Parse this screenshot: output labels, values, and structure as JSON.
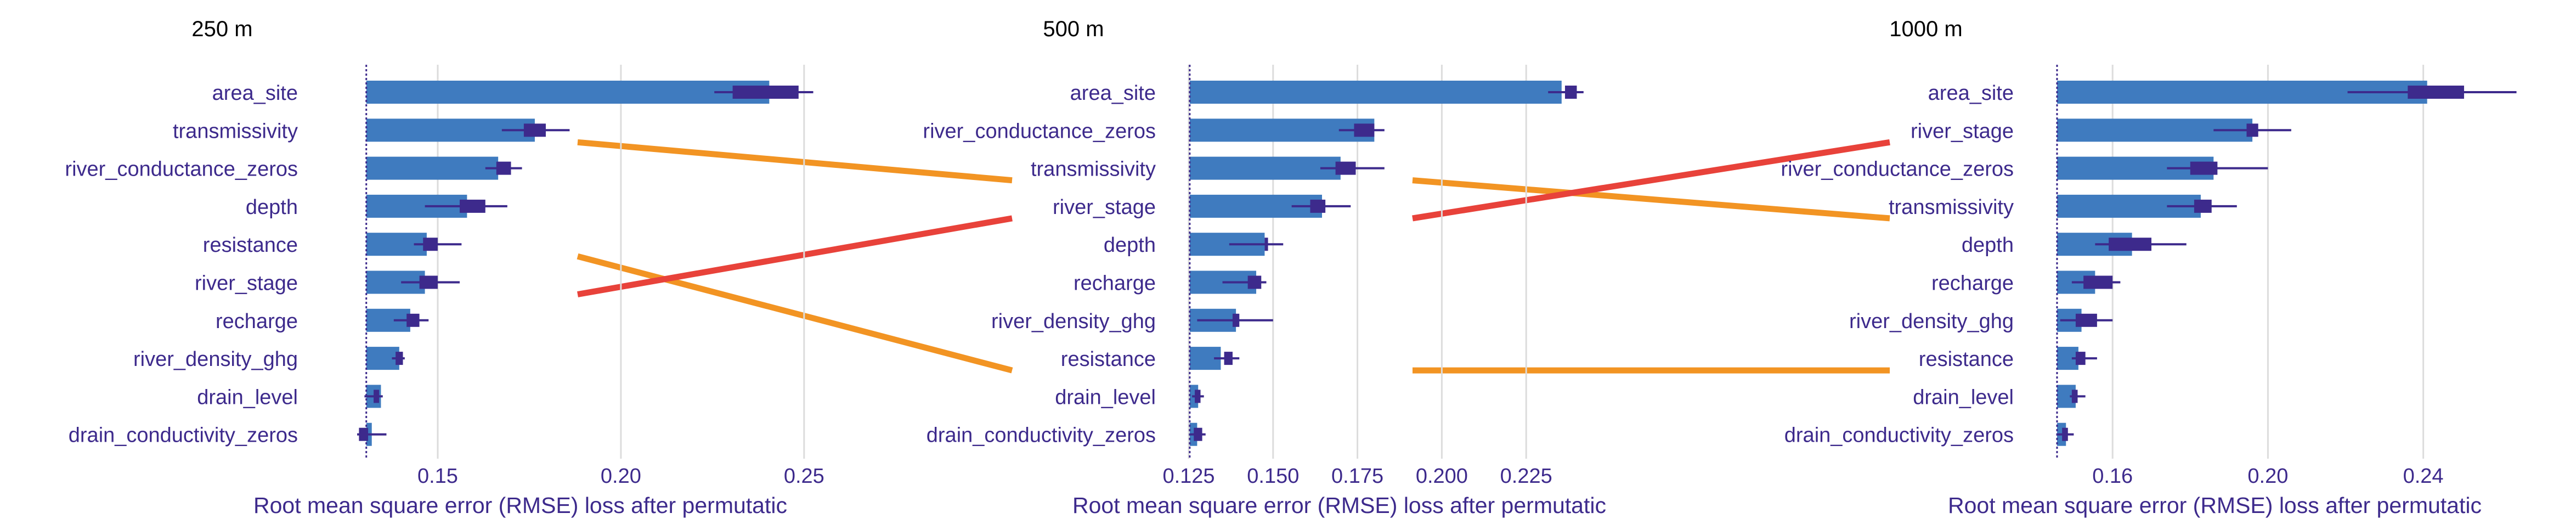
{
  "colors": {
    "bar": "#3f7bbf",
    "whisker": "#3d2a8c",
    "grid": "#dcdcdc",
    "baseline": "#3d2a8c",
    "label": "#3d2a8c",
    "title": "#000000",
    "orange": "#f29423",
    "red": "#e8423a"
  },
  "chart_data": [
    {
      "type": "bar",
      "title": "250 m",
      "xlabel": "Root mean square error (RMSE) loss after permutatic",
      "xlim": [
        0.125,
        0.265
      ],
      "baseline": 0.1305,
      "xticks": [
        0.15,
        0.2,
        0.25
      ],
      "xtick_labels": [
        "0.15",
        "0.20",
        "0.25"
      ],
      "categories": [
        "area_site",
        "transmissivity",
        "river_conductance_zeros",
        "depth",
        "resistance",
        "river_stage",
        "recharge",
        "river_density_ghg",
        "drain_level",
        "drain_conductivity_zeros"
      ],
      "values": [
        0.2405,
        0.1765,
        0.1665,
        0.158,
        0.147,
        0.1465,
        0.1425,
        0.1395,
        0.1345,
        0.132
      ],
      "box_low": [
        0.2305,
        0.1735,
        0.166,
        0.156,
        0.146,
        0.145,
        0.1415,
        0.1385,
        0.1325,
        0.1285
      ],
      "box_high": [
        0.2485,
        0.1795,
        0.17,
        0.163,
        0.15,
        0.15,
        0.145,
        0.1405,
        0.134,
        0.131
      ],
      "whisker_low": [
        0.2255,
        0.1675,
        0.163,
        0.1465,
        0.1435,
        0.14,
        0.138,
        0.1375,
        0.13,
        0.128
      ],
      "whisker_high": [
        0.2525,
        0.186,
        0.173,
        0.169,
        0.1565,
        0.156,
        0.1475,
        0.141,
        0.135,
        0.136
      ]
    },
    {
      "type": "bar",
      "title": "500 m",
      "xlabel": "Root mean square error (RMSE) loss after permutatic",
      "xlim": [
        0.125,
        0.25
      ],
      "baseline": 0.1253,
      "xticks": [
        0.125,
        0.15,
        0.175,
        0.2,
        0.225
      ],
      "xtick_labels": [
        "0.125",
        "0.150",
        "0.175",
        "0.200",
        "0.225"
      ],
      "categories": [
        "area_site",
        "river_conductance_zeros",
        "transmissivity",
        "river_stage",
        "depth",
        "recharge",
        "river_density_ghg",
        "resistance",
        "drain_level",
        "drain_conductivity_zeros"
      ],
      "values": [
        0.2355,
        0.18,
        0.17,
        0.1645,
        0.1475,
        0.145,
        0.139,
        0.1345,
        0.1278,
        0.1275
      ],
      "box_low": [
        0.2365,
        0.174,
        0.1685,
        0.161,
        0.1475,
        0.1425,
        0.138,
        0.1355,
        0.1268,
        0.1265
      ],
      "box_high": [
        0.24,
        0.18,
        0.1745,
        0.1655,
        0.1485,
        0.1465,
        0.14,
        0.138,
        0.1285,
        0.129
      ],
      "whisker_low": [
        0.2315,
        0.1695,
        0.164,
        0.1555,
        0.137,
        0.135,
        0.1275,
        0.1325,
        0.126,
        0.1255
      ],
      "whisker_high": [
        0.242,
        0.183,
        0.183,
        0.173,
        0.153,
        0.148,
        0.15,
        0.14,
        0.1295,
        0.13
      ]
    },
    {
      "type": "bar",
      "title": "1000 m",
      "xlabel": "Root mean square error (RMSE) loss after permutatic",
      "xlim": [
        0.145,
        0.27
      ],
      "baseline": 0.1457,
      "xticks": [
        0.16,
        0.2,
        0.24
      ],
      "xtick_labels": [
        "0.16",
        "0.20",
        "0.24"
      ],
      "categories": [
        "area_site",
        "river_stage",
        "river_conductance_zeros",
        "transmissivity",
        "depth",
        "recharge",
        "river_density_ghg",
        "resistance",
        "drain_level",
        "drain_conductivity_zeros"
      ],
      "values": [
        0.241,
        0.196,
        0.186,
        0.1827,
        0.165,
        0.1555,
        0.152,
        0.1512,
        0.1505,
        0.148
      ],
      "box_low": [
        0.236,
        0.1945,
        0.18,
        0.181,
        0.159,
        0.1525,
        0.1505,
        0.1505,
        0.1495,
        0.147
      ],
      "box_high": [
        0.2505,
        0.1975,
        0.187,
        0.1855,
        0.17,
        0.16,
        0.156,
        0.153,
        0.151,
        0.1485
      ],
      "whisker_low": [
        0.2205,
        0.186,
        0.174,
        0.174,
        0.1555,
        0.1495,
        0.1465,
        0.1495,
        0.149,
        0.1455
      ],
      "whisker_high": [
        0.264,
        0.206,
        0.2,
        0.192,
        0.179,
        0.162,
        0.16,
        0.156,
        0.153,
        0.15
      ]
    }
  ],
  "rank_links": [
    {
      "variable": "transmissivity",
      "from_panel": 0,
      "to_panel": 1,
      "color": "orange"
    },
    {
      "variable": "resistance",
      "from_panel": 0,
      "to_panel": 1,
      "color": "orange"
    },
    {
      "variable": "river_stage",
      "from_panel": 0,
      "to_panel": 1,
      "color": "red"
    },
    {
      "variable": "transmissivity",
      "from_panel": 1,
      "to_panel": 2,
      "color": "orange"
    },
    {
      "variable": "river_stage",
      "from_panel": 1,
      "to_panel": 2,
      "color": "red"
    },
    {
      "variable": "resistance",
      "from_panel": 1,
      "to_panel": 2,
      "color": "orange"
    }
  ]
}
